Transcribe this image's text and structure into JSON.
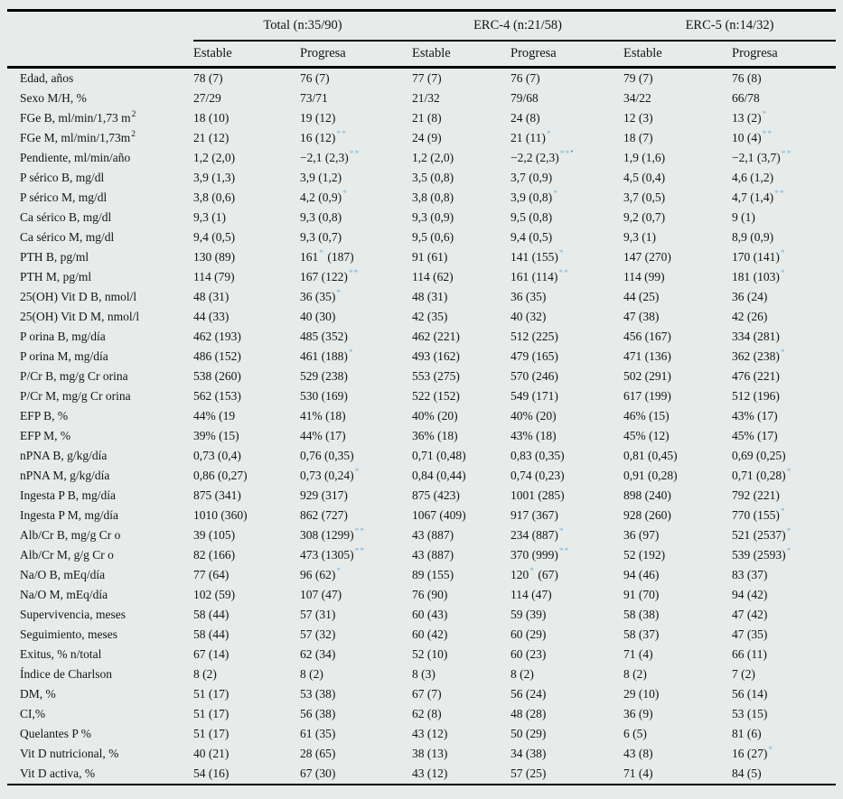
{
  "colors": {
    "background": "#e7ebea",
    "asterisk": "#7ab5db",
    "text": "#151515",
    "rule": "#000000"
  },
  "table": {
    "group_headers": [
      "Total (n:35/90)",
      "ERC-4 (n:21/58)",
      "ERC-5 (n:14/32)"
    ],
    "sub_headers": [
      "Estable",
      "Progresa",
      "Estable",
      "Progresa",
      "Estable",
      "Progresa"
    ],
    "rows": [
      {
        "label": "Edad, años",
        "cells": [
          "78 (7)",
          "76 (7)",
          "77 (7)",
          "76 (7)",
          "79 (7)",
          "76 (8)"
        ]
      },
      {
        "label": "Sexo M/H, %",
        "cells": [
          "27/29",
          "73/71",
          "21/32",
          "79/68",
          "34/22",
          "66/78"
        ]
      },
      {
        "label": "FGe B, ml/min/1,73 m^{2}",
        "cells": [
          "18 (10)",
          "19 (12)",
          "21 (8)",
          "24 (8)",
          "12 (3)",
          "13 (2)^{*}"
        ]
      },
      {
        "label": "FGe M, ml/min/1,73m^{2}",
        "cells": [
          "21 (12)",
          "16 (12)^{**}",
          "24 (9)",
          "21 (11)^{*}",
          "18 (7)",
          "10 (4)^{**}"
        ]
      },
      {
        "label": "Pendiente, ml/min/año",
        "cells": [
          "1,2 (2,0)",
          "−2,1 (2,3)^{**}",
          "1,2 (2,0)",
          "−2,2 (2,3)^{**’}",
          "1,9 (1,6)",
          "−2,1 (3,7)^{**}"
        ]
      },
      {
        "label": "P sérico B, mg/dl",
        "cells": [
          "3,9 (1,3)",
          "3,9 (1,2)",
          "3,5 (0,8)",
          "3,7 (0,9)",
          "4,5 (0,4)",
          "4,6 (1,2)"
        ]
      },
      {
        "label": "P sérico M, mg/dl",
        "cells": [
          "3,8 (0,6)",
          "4,2 (0,9)^{*}",
          "3,8 (0,8)",
          "3,9 (0,8)^{*}",
          "3,7 (0,5)",
          "4,7 (1,4)^{**}"
        ]
      },
      {
        "label": "Ca sérico B, mg/dl",
        "cells": [
          "9,3 (1)",
          "9,3 (0,8)",
          "9,3 (0,9)",
          "9,5 (0,8)",
          "9,2 (0,7)",
          "9 (1)"
        ]
      },
      {
        "label": "Ca sérico M, mg/dl",
        "cells": [
          "9,4 (0,5)",
          "9,3 (0,7)",
          "9,5 (0,6)",
          "9,4 (0,5)",
          "9,3 (1)",
          "8,9 (0,9)"
        ]
      },
      {
        "label": "PTH B, pg/ml",
        "cells": [
          "130 (89)",
          "161^{*} (187)",
          "91 (61)",
          "141 (155)^{*}",
          "147 (270)",
          "170 (141)^{*}"
        ]
      },
      {
        "label": "PTH M, pg/ml",
        "cells": [
          "114 (79)",
          "167 (122)^{**}",
          "114 (62)",
          "161 (114)^{**}",
          "114 (99)",
          "181 (103)^{*}"
        ]
      },
      {
        "label": "25(OH) Vit D B, nmol/l",
        "cells": [
          "48 (31)",
          "36 (35)^{*}",
          "48 (31)",
          "36 (35)",
          "44 (25)",
          "36 (24)"
        ]
      },
      {
        "label": "25(OH) Vit D M, nmol/l",
        "cells": [
          "44 (33)",
          "40 (30)",
          "42 (35)",
          "40 (32)",
          "47 (38)",
          "42 (26)"
        ]
      },
      {
        "label": "P orina B, mg/día",
        "cells": [
          "462 (193)",
          "485 (352)",
          "462 (221)",
          "512 (225)",
          "456 (167)",
          "334 (281)"
        ]
      },
      {
        "label": "P orina M, mg/día",
        "cells": [
          "486 (152)",
          "461 (188)^{*}",
          "493 (162)",
          "479 (165)",
          "471 (136)",
          "362 (238)^{*}"
        ]
      },
      {
        "label": "P/Cr B, mg/g Cr orina",
        "cells": [
          "538 (260)",
          "529 (238)",
          "553 (275)",
          "570 (246)",
          "502 (291)",
          "476 (221)"
        ]
      },
      {
        "label": "P/Cr M, mg/g Cr orina",
        "cells": [
          "562 (153)",
          "530 (169)",
          "522 (152)",
          "549 (171)",
          "617 (199)",
          "512 (196)"
        ]
      },
      {
        "label": "EFP B, %",
        "cells": [
          "44% (19",
          "41% (18)",
          "40% (20)",
          "40% (20)",
          "46% (15)",
          "43% (17)"
        ]
      },
      {
        "label": "EFP M, %",
        "cells": [
          "39% (15)",
          "44% (17)",
          "36% (18)",
          "43% (18)",
          "45% (12)",
          "45% (17)"
        ]
      },
      {
        "label": "nPNA B, g/kg/día",
        "cells": [
          "0,73 (0,4)",
          "0,76 (0,35)",
          "0,71 (0,48)",
          "0,83 (0,35)",
          "0,81 (0,45)",
          "0,69 (0,25)"
        ]
      },
      {
        "label": "nPNA M, g/kg/día",
        "cells": [
          "0,86 (0,27)",
          "0,73 (0,24)^{*}",
          "0,84 (0,44)",
          "0,74 (0,23)",
          "0,91 (0,28)",
          "0,71 (0,28)^{*}"
        ]
      },
      {
        "label": "Ingesta P B, mg/día",
        "cells": [
          "875 (341)",
          "929 (317)",
          "875 (423)",
          "1001 (285)",
          "898 (240)",
          "792 (221)"
        ]
      },
      {
        "label": "Ingesta P M, mg/día",
        "cells": [
          "1010 (360)",
          "862 (727)",
          "1067 (409)",
          "917 (367)",
          "928 (260)",
          "770 (155)^{*}"
        ]
      },
      {
        "label": "Alb/Cr B, mg/g Cr o",
        "cells": [
          "39 (105)",
          "308 (1299)^{**}",
          "43 (887)",
          "234 (887)^{*}",
          "36 (97)",
          "521 (2537)^{*}"
        ]
      },
      {
        "label": "Alb/Cr M, g/g Cr o",
        "cells": [
          "82 (166)",
          "473 (1305)^{**}",
          "43 (887)",
          "370 (999)^{**}",
          "52 (192)",
          "539 (2593)^{*}"
        ]
      },
      {
        "label": "Na/O B, mEq/día",
        "cells": [
          "77 (64)",
          "96 (62)^{*}",
          "89 (155)",
          "120^{*} (67)",
          "94 (46)",
          "83 (37)"
        ]
      },
      {
        "label": "Na/O M, mEq/día",
        "cells": [
          "102 (59)",
          "107 (47)",
          "76 (90)",
          "114 (47)",
          "91 (70)",
          "94 (42)"
        ]
      },
      {
        "label": "Supervivencia, meses",
        "cells": [
          "58 (44)",
          "57 (31)",
          "60 (43)",
          "59 (39)",
          "58 (38)",
          "47 (42)"
        ]
      },
      {
        "label": "Seguimiento, meses",
        "cells": [
          "58 (44)",
          "57 (32)",
          "60 (42)",
          "60 (29)",
          "58 (37)",
          "47 (35)"
        ]
      },
      {
        "label": "Exitus, % n/total",
        "cells": [
          "67 (14)",
          "62 (34)",
          "52 (10)",
          "60 (23)",
          "71 (4)",
          "66 (11)"
        ]
      },
      {
        "label": "Índice de Charlson",
        "cells": [
          "8 (2)",
          "8 (2)",
          "8 (3)",
          "8 (2)",
          "8 (2)",
          "7 (2)"
        ]
      },
      {
        "label": "DM, %",
        "cells": [
          "51 (17)",
          "53 (38)",
          "67 (7)",
          "56 (24)",
          "29 (10)",
          "56 (14)"
        ]
      },
      {
        "label": "CI,%",
        "cells": [
          "51 (17)",
          "56 (38)",
          "62 (8)",
          "48 (28)",
          "36 (9)",
          "53 (15)"
        ]
      },
      {
        "label": "Quelantes P %",
        "cells": [
          "51 (17)",
          "61 (35)",
          "43 (12)",
          "50 (29)",
          "6 (5)",
          "81 (6)"
        ]
      },
      {
        "label": "Vit D nutricional, %",
        "cells": [
          "40 (21)",
          "28 (65)",
          "38 (13)",
          "34 (38)",
          "43 (8)",
          "16 (27)^{*}"
        ]
      },
      {
        "label": "Vit D activa, %",
        "cells": [
          "54 (16)",
          "67 (30)",
          "43 (12)",
          "57 (25)",
          "71 (4)",
          "84 (5)"
        ]
      }
    ]
  }
}
